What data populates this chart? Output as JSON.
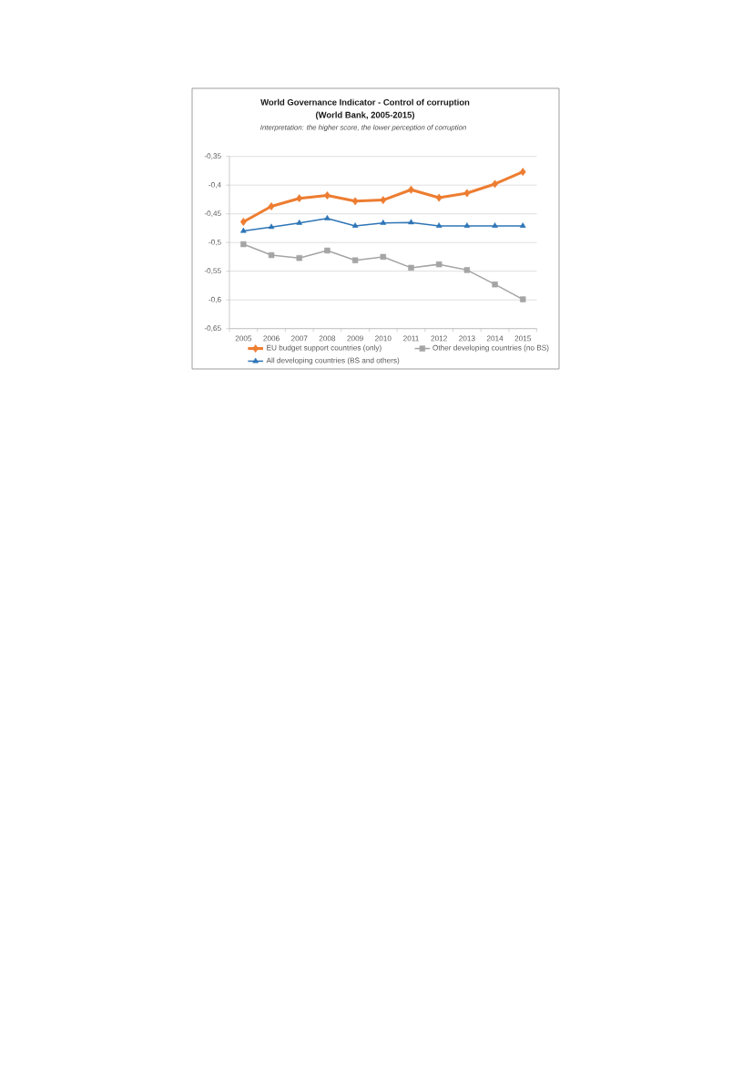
{
  "chart_data": {
    "type": "line",
    "title": "World Governance Indicator - Control of corruption (World Bank, 2005-2015)",
    "subtitle": "Interpretation: the higher score, the lower perception of corruption",
    "categories": [
      "2005",
      "2006",
      "2007",
      "2008",
      "2009",
      "2010",
      "2011",
      "2012",
      "2013",
      "2014",
      "2015"
    ],
    "series": [
      {
        "name": "EU budget support countries (only)",
        "color": "#ed7d31",
        "marker": "diamond",
        "values": [
          -0.464,
          -0.437,
          -0.423,
          -0.418,
          -0.428,
          -0.426,
          -0.408,
          -0.422,
          -0.414,
          -0.398,
          -0.377
        ]
      },
      {
        "name": "Other developing countries (no BS)",
        "color": "#a5a5a5",
        "marker": "square",
        "values": [
          -0.503,
          -0.522,
          -0.527,
          -0.514,
          -0.531,
          -0.525,
          -0.544,
          -0.538,
          -0.548,
          -0.573,
          -0.599
        ]
      },
      {
        "name": "All developing countries (BS and others)",
        "color": "#2e75b6",
        "marker": "triangle",
        "values": [
          -0.48,
          -0.473,
          -0.466,
          -0.458,
          -0.471,
          -0.466,
          -0.465,
          -0.471,
          -0.471,
          -0.471,
          -0.471
        ]
      }
    ],
    "ylim": [
      -0.65,
      -0.35
    ],
    "yticks": [
      {
        "value": -0.65,
        "label": "-0,65"
      },
      {
        "value": -0.6,
        "label": "-0,6"
      },
      {
        "value": -0.55,
        "label": "-0,55"
      },
      {
        "value": -0.5,
        "label": "-0,5"
      },
      {
        "value": -0.45,
        "label": "-0,45"
      },
      {
        "value": -0.4,
        "label": "-0,4"
      },
      {
        "value": -0.35,
        "label": "-0,35"
      }
    ],
    "grid": "y",
    "legend": "bottom"
  }
}
